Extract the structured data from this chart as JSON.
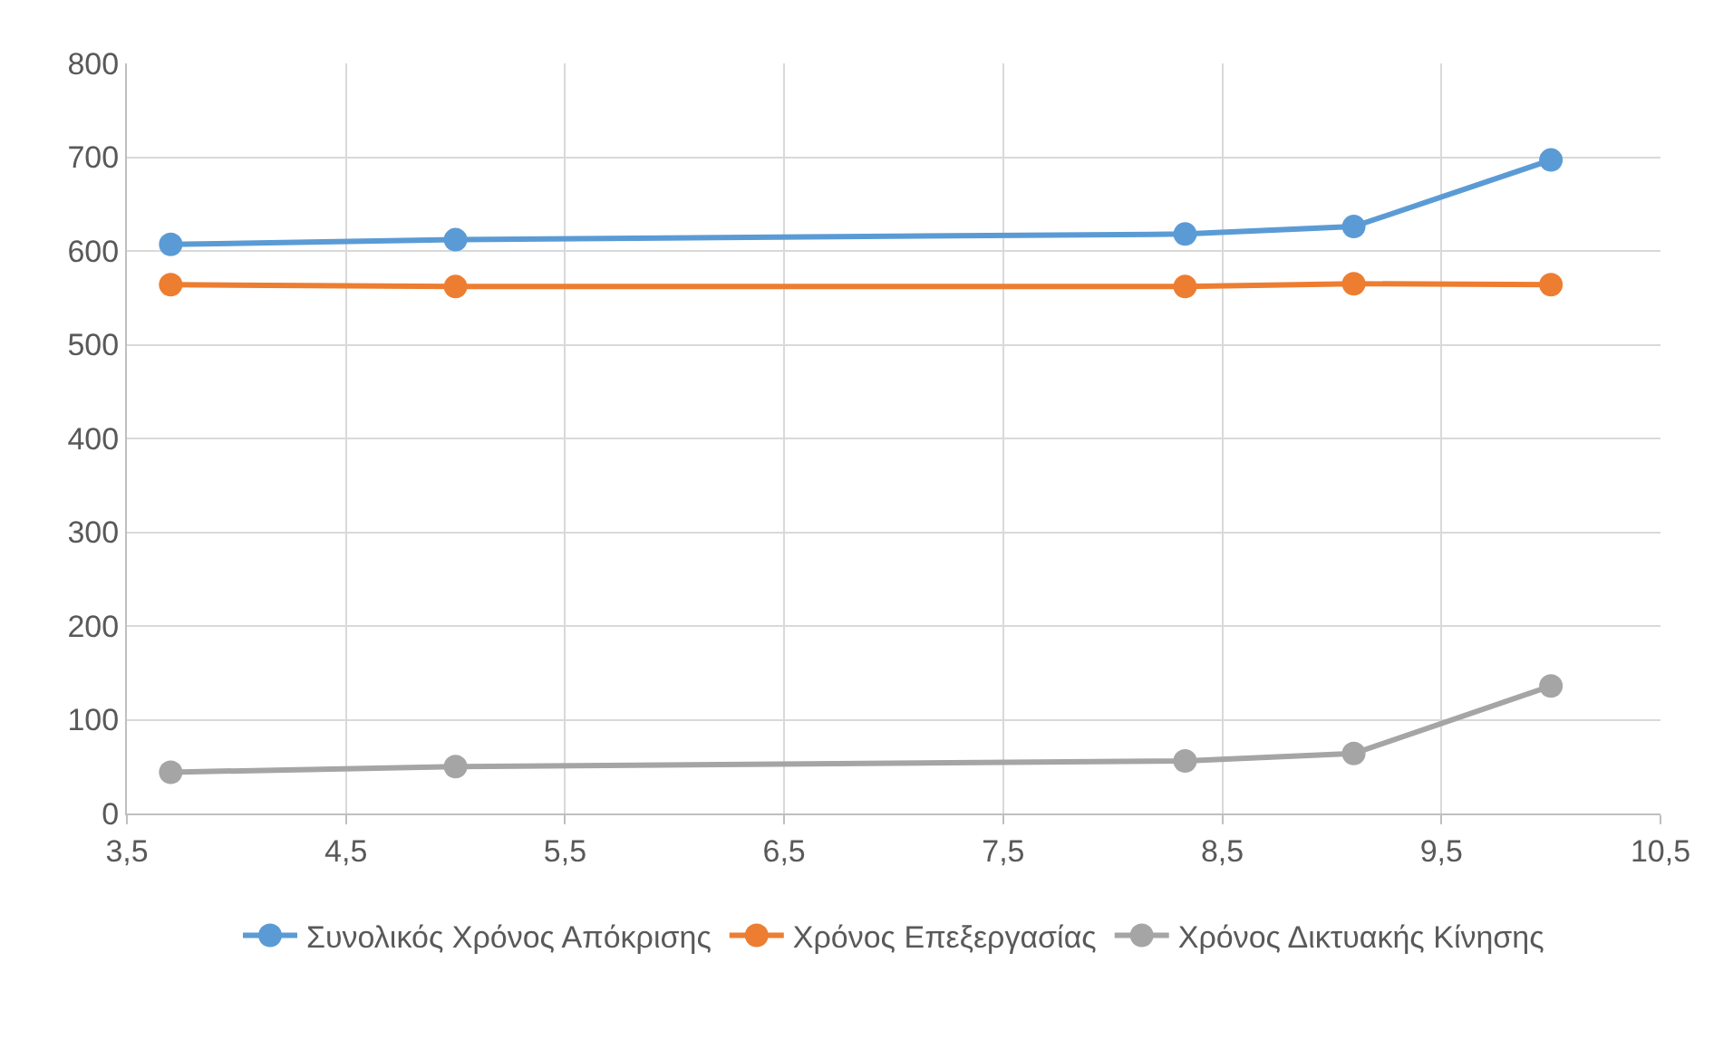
{
  "chart_data": {
    "type": "line",
    "x": [
      3.7,
      5.0,
      8.33,
      9.1,
      10.0
    ],
    "series": [
      {
        "name": "Συνολικός Χρόνος Απόκρισης",
        "color": "#5b9bd5",
        "values": [
          607,
          612,
          618,
          626,
          697
        ]
      },
      {
        "name": "Χρόνος Επεξεργασίας",
        "color": "#ed7d31",
        "values": [
          564,
          562,
          562,
          565,
          564
        ]
      },
      {
        "name": "Χρόνος Δικτυακής Κίνησης",
        "color": "#a5a5a5",
        "values": [
          44,
          50,
          56,
          64,
          136
        ]
      }
    ],
    "xlim": [
      3.5,
      10.5
    ],
    "xticks": [
      {
        "value": 3.5,
        "label": "3,5"
      },
      {
        "value": 4.5,
        "label": "4,5"
      },
      {
        "value": 5.5,
        "label": "5,5"
      },
      {
        "value": 6.5,
        "label": "6,5"
      },
      {
        "value": 7.5,
        "label": "7,5"
      },
      {
        "value": 8.5,
        "label": "8,5"
      },
      {
        "value": 9.5,
        "label": "9,5"
      },
      {
        "value": 10.5,
        "label": "10,5"
      }
    ],
    "ylim": [
      0,
      800
    ],
    "yticks": [
      0,
      100,
      200,
      300,
      400,
      500,
      600,
      700,
      800
    ],
    "grid": true,
    "legend": "bottom",
    "marker": "circle",
    "line_style": "solid"
  }
}
